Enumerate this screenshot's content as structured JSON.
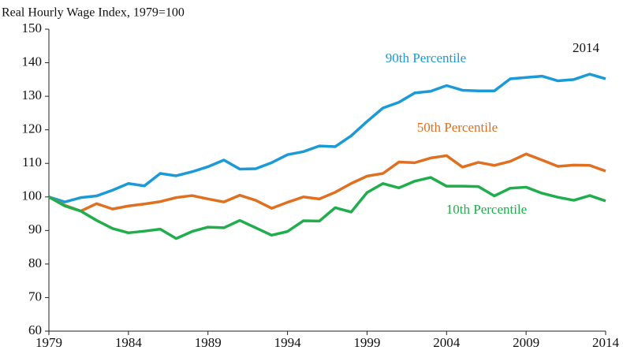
{
  "chart_data": {
    "type": "line",
    "subtitle": "Real Hourly Wage Index, 1979=100",
    "annotation": "2014",
    "x": [
      1979,
      1980,
      1981,
      1982,
      1983,
      1984,
      1985,
      1986,
      1987,
      1988,
      1989,
      1990,
      1991,
      1992,
      1993,
      1994,
      1995,
      1996,
      1997,
      1998,
      1999,
      2000,
      2001,
      2002,
      2003,
      2004,
      2005,
      2006,
      2007,
      2008,
      2009,
      2010,
      2011,
      2012,
      2013,
      2014
    ],
    "series": [
      {
        "name": "90th Percentile",
        "color": "#1a9ad6",
        "values": [
          100,
          98.5,
          99.8,
          100.3,
          102,
          104,
          103.3,
          107,
          106.3,
          107.5,
          109,
          111,
          108.3,
          108.4,
          110.2,
          112.6,
          113.5,
          115.2,
          115,
          118.2,
          122.5,
          126.5,
          128.2,
          131,
          131.5,
          133.2,
          131.8,
          131.6,
          131.6,
          135.2,
          135.6,
          136,
          134.6,
          135,
          136.6,
          135.2
        ]
      },
      {
        "name": "50th Percentile",
        "color": "#e07020",
        "values": [
          100,
          97.5,
          95.8,
          98,
          96.4,
          97.3,
          97.9,
          98.6,
          99.8,
          100.4,
          99.4,
          98.5,
          100.5,
          99,
          96.6,
          98.4,
          100,
          99.4,
          101.4,
          104,
          106.2,
          107,
          110.4,
          110.2,
          111.6,
          112.3,
          108.9,
          110.3,
          109.4,
          110.6,
          112.8,
          111,
          109.1,
          109.5,
          109.4,
          107.7
        ]
      },
      {
        "name": "10th Percentile",
        "color": "#1fae4b",
        "values": [
          100,
          97.3,
          95.8,
          93,
          90.6,
          89.3,
          89.8,
          90.4,
          87.6,
          89.7,
          91,
          90.8,
          93,
          90.8,
          88.6,
          89.7,
          92.9,
          92.8,
          96.8,
          95.5,
          101.3,
          104,
          102.7,
          104.7,
          105.8,
          103.2,
          103.2,
          103.1,
          100.3,
          102.6,
          102.9,
          101.1,
          99.9,
          99,
          100.4,
          98.8
        ]
      }
    ],
    "xlim": [
      1979,
      2014
    ],
    "xticks": [
      1979,
      1984,
      1989,
      1994,
      1999,
      2004,
      2009,
      2014
    ],
    "ylim": [
      60,
      150
    ],
    "yticks": [
      60,
      70,
      80,
      90,
      100,
      110,
      120,
      130,
      140,
      150
    ],
    "grid": false
  }
}
